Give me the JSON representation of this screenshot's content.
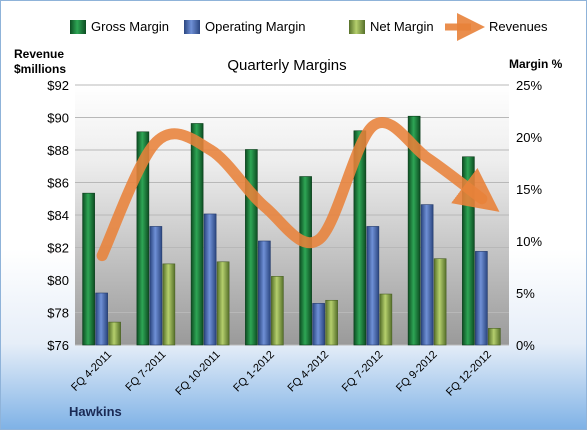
{
  "chart_data": {
    "type": "bar",
    "title": "Quarterly Margins",
    "footer": "Hawkins",
    "left_axis": {
      "label_line1": "Revenue",
      "label_line2": "$millions",
      "min": 76,
      "max": 92,
      "step": 2,
      "prefix": "$"
    },
    "right_axis": {
      "label": "Margin %",
      "min": 0,
      "max": 25,
      "step": 5,
      "suffix": "%"
    },
    "categories": [
      "FQ 4-2011",
      "FQ 7-2011",
      "FQ 10-2011",
      "FQ 1-2012",
      "FQ 4-2012",
      "FQ 7-2012",
      "FQ 9-2012",
      "FQ 12-2012"
    ],
    "series": [
      {
        "name": "Gross Margin",
        "kind": "bar",
        "axis": "right",
        "color": "#1f7a3a",
        "values": [
          14.6,
          20.5,
          21.3,
          18.8,
          16.2,
          20.6,
          22.0,
          18.1
        ]
      },
      {
        "name": "Operating Margin",
        "kind": "bar",
        "axis": "right",
        "color": "#4a6fb5",
        "values": [
          5.0,
          11.4,
          12.6,
          10.0,
          4.0,
          11.4,
          13.5,
          9.0
        ]
      },
      {
        "name": "Net Margin",
        "kind": "bar",
        "axis": "right",
        "color": "#8aa84a",
        "values": [
          2.2,
          7.8,
          8.0,
          6.6,
          4.3,
          4.9,
          8.3,
          1.6
        ]
      },
      {
        "name": "Revenues",
        "kind": "line",
        "axis": "left",
        "color": "#e8823a",
        "values": [
          81.5,
          88.5,
          88.0,
          84.5,
          82.5,
          89.5,
          87.5,
          85.0
        ]
      }
    ]
  }
}
